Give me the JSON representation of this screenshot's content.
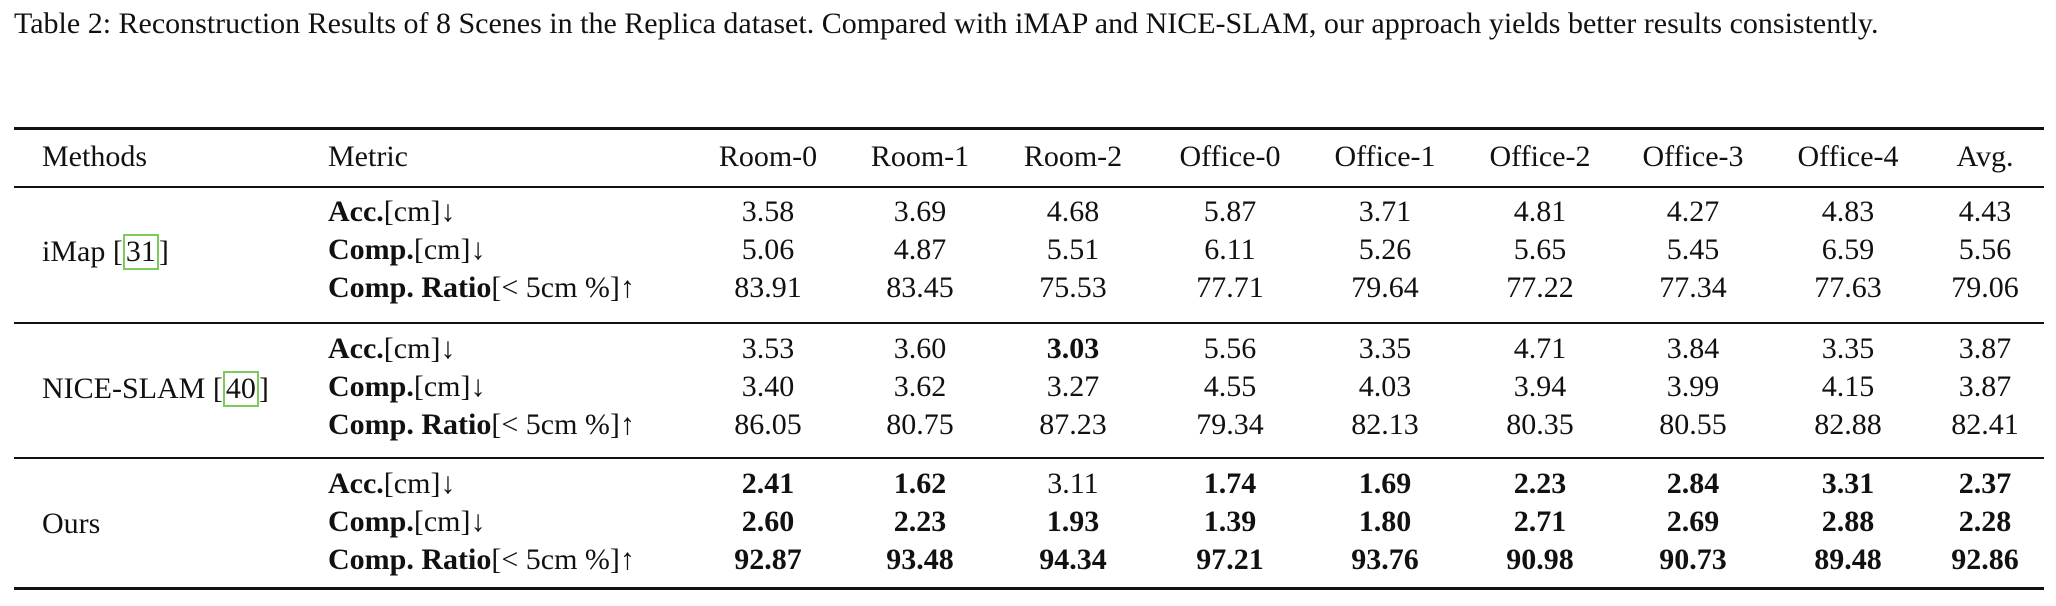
{
  "caption": "Table 2: Reconstruction Results of 8 Scenes in the Replica dataset. Compared with iMAP and NICE-SLAM, our approach yields better results consistently.",
  "table": {
    "headers": {
      "methods": "Methods",
      "metric": "Metric",
      "columns": [
        "Room-0",
        "Room-1",
        "Room-2",
        "Office-0",
        "Office-1",
        "Office-2",
        "Office-3",
        "Office-4",
        "Avg."
      ]
    },
    "metric_labels": {
      "acc_bold": "Acc.",
      "acc_rest": "[cm]↓",
      "comp_bold": "Comp.",
      "comp_rest": "[cm]↓",
      "ratio_bold": "Comp. Ratio",
      "ratio_rest": "[< 5cm %]↑"
    },
    "groups": [
      {
        "method_name": "iMap [",
        "citation": "31",
        "method_suffix": "]",
        "rows": {
          "acc": [
            "3.58",
            "3.69",
            "4.68",
            "5.87",
            "3.71",
            "4.81",
            "4.27",
            "4.83",
            "4.43"
          ],
          "comp": [
            "5.06",
            "4.87",
            "5.51",
            "6.11",
            "5.26",
            "5.65",
            "5.45",
            "6.59",
            "5.56"
          ],
          "ratio": [
            "83.91",
            "83.45",
            "75.53",
            "77.71",
            "79.64",
            "77.22",
            "77.34",
            "77.63",
            "79.06"
          ]
        }
      },
      {
        "method_name": "NICE-SLAM [",
        "citation": "40",
        "method_suffix": "]",
        "rows": {
          "acc": [
            "3.53",
            "3.60",
            "3.03",
            "5.56",
            "3.35",
            "4.71",
            "3.84",
            "3.35",
            "3.87"
          ],
          "comp": [
            "3.40",
            "3.62",
            "3.27",
            "4.55",
            "4.03",
            "3.94",
            "3.99",
            "4.15",
            "3.87"
          ],
          "ratio": [
            "86.05",
            "80.75",
            "87.23",
            "79.34",
            "82.13",
            "80.35",
            "80.55",
            "82.88",
            "82.41"
          ]
        }
      },
      {
        "method_name": "Ours",
        "rows": {
          "acc": [
            "2.41",
            "1.62",
            "3.11",
            "1.74",
            "1.69",
            "2.23",
            "2.84",
            "3.31",
            "2.37"
          ],
          "comp": [
            "2.60",
            "2.23",
            "1.93",
            "1.39",
            "1.80",
            "2.71",
            "2.69",
            "2.88",
            "2.28"
          ],
          "ratio": [
            "92.87",
            "93.48",
            "94.34",
            "97.21",
            "93.76",
            "90.98",
            "90.73",
            "89.48",
            "92.86"
          ]
        }
      }
    ],
    "bold_cells": [
      {
        "group": 1,
        "row": "acc",
        "col": 2
      },
      {
        "group": 2,
        "row": "acc",
        "col": 0
      },
      {
        "group": 2,
        "row": "acc",
        "col": 1
      },
      {
        "group": 2,
        "row": "acc",
        "col": 3
      },
      {
        "group": 2,
        "row": "acc",
        "col": 4
      },
      {
        "group": 2,
        "row": "acc",
        "col": 5
      },
      {
        "group": 2,
        "row": "acc",
        "col": 6
      },
      {
        "group": 2,
        "row": "acc",
        "col": 7
      },
      {
        "group": 2,
        "row": "acc",
        "col": 8
      },
      {
        "group": 2,
        "row": "comp",
        "col": 0
      },
      {
        "group": 2,
        "row": "comp",
        "col": 1
      },
      {
        "group": 2,
        "row": "comp",
        "col": 2
      },
      {
        "group": 2,
        "row": "comp",
        "col": 3
      },
      {
        "group": 2,
        "row": "comp",
        "col": 4
      },
      {
        "group": 2,
        "row": "comp",
        "col": 5
      },
      {
        "group": 2,
        "row": "comp",
        "col": 6
      },
      {
        "group": 2,
        "row": "comp",
        "col": 7
      },
      {
        "group": 2,
        "row": "comp",
        "col": 8
      },
      {
        "group": 2,
        "row": "ratio",
        "col": 0
      },
      {
        "group": 2,
        "row": "ratio",
        "col": 1
      },
      {
        "group": 2,
        "row": "ratio",
        "col": 2
      },
      {
        "group": 2,
        "row": "ratio",
        "col": 3
      },
      {
        "group": 2,
        "row": "ratio",
        "col": 4
      },
      {
        "group": 2,
        "row": "ratio",
        "col": 5
      },
      {
        "group": 2,
        "row": "ratio",
        "col": 6
      },
      {
        "group": 2,
        "row": "ratio",
        "col": 7
      },
      {
        "group": 2,
        "row": "ratio",
        "col": 8
      }
    ]
  }
}
